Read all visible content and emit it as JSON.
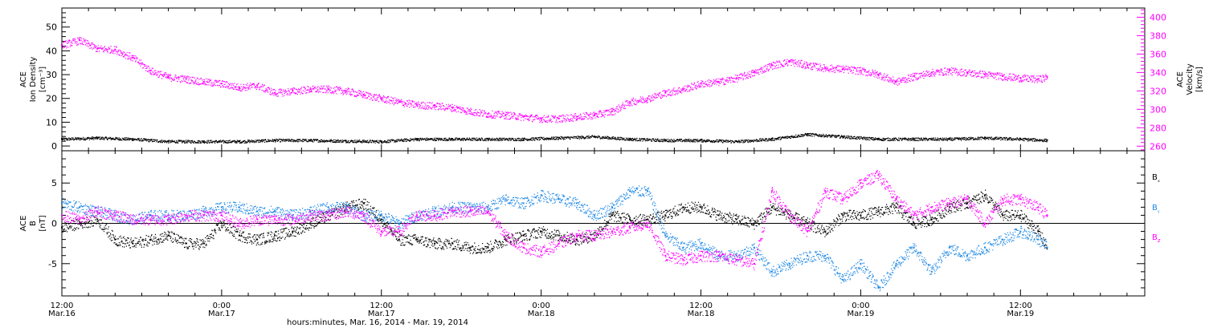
{
  "colors": {
    "black": "#000000",
    "magenta": "#ff00ff",
    "blue": "#1e88e5",
    "frame": "#000000"
  },
  "chart_data": [
    {
      "type": "scatter",
      "panel": "top",
      "ylabel_left": [
        "ACE",
        "Ion Density",
        "[cm⁻³]"
      ],
      "ylabel_right": [
        "ACE",
        "Velocity",
        "[km/s]"
      ],
      "left_axis": {
        "ylim": [
          -2,
          58
        ],
        "ticks": [
          0,
          10,
          20,
          30,
          40,
          50
        ]
      },
      "right_axis": {
        "ylim": [
          255,
          410
        ],
        "ticks": [
          260,
          280,
          300,
          320,
          340,
          360,
          380,
          400
        ]
      },
      "series": [
        {
          "axis": "left",
          "color": "black",
          "x": [
            0,
            4,
            8,
            12,
            16,
            20,
            24,
            28,
            32,
            36,
            40,
            44,
            48,
            52,
            56,
            60,
            64,
            68,
            72,
            76,
            80,
            84,
            88,
            92,
            96,
            100,
            104,
            108,
            111
          ],
          "y": [
            3,
            3.5,
            3,
            2,
            2,
            2,
            2.5,
            2.5,
            2.2,
            2,
            3,
            3,
            3,
            3,
            3.5,
            4,
            3,
            2.5,
            2.5,
            2,
            3,
            5,
            4,
            3,
            3,
            3,
            3.5,
            3,
            2.5
          ]
        },
        {
          "axis": "right",
          "color": "magenta",
          "x": [
            0,
            2,
            4,
            6,
            8,
            10,
            12,
            14,
            16,
            18,
            20,
            22,
            24,
            26,
            28,
            30,
            32,
            34,
            36,
            38,
            40,
            42,
            44,
            46,
            48,
            50,
            52,
            54,
            56,
            58,
            60,
            62,
            64,
            66,
            68,
            70,
            72,
            74,
            76,
            78,
            80,
            82,
            84,
            86,
            88,
            90,
            92,
            94,
            96,
            98,
            100,
            102,
            104,
            106,
            108,
            110,
            111
          ],
          "y": [
            370,
            375,
            366,
            365,
            356,
            342,
            335,
            333,
            330,
            328,
            324,
            326,
            318,
            320,
            322,
            322,
            320,
            316,
            312,
            308,
            305,
            304,
            302,
            298,
            295,
            294,
            292,
            290,
            290,
            292,
            294,
            298,
            308,
            312,
            318,
            322,
            328,
            330,
            334,
            340,
            348,
            352,
            348,
            345,
            344,
            342,
            338,
            330,
            336,
            340,
            342,
            340,
            338,
            336,
            334,
            333,
            335
          ]
        }
      ]
    },
    {
      "type": "scatter",
      "panel": "bottom",
      "ylabel": [
        "ACE",
        "B",
        "[nT]"
      ],
      "ylim": [
        -9,
        9
      ],
      "ticks": [
        -5,
        0,
        5
      ],
      "zero_line": true,
      "legend": [
        "Bₓ",
        "Bᵧ",
        "B_z"
      ],
      "legend_colors": [
        "black",
        "blue",
        "magenta"
      ],
      "series": [
        {
          "name": "Bₓ",
          "color": "black",
          "x": [
            0,
            2,
            4,
            6,
            8,
            10,
            12,
            14,
            16,
            18,
            20,
            22,
            24,
            26,
            28,
            30,
            32,
            34,
            36,
            38,
            40,
            42,
            44,
            46,
            48,
            50,
            52,
            54,
            56,
            58,
            60,
            62,
            64,
            66,
            68,
            70,
            72,
            74,
            76,
            78,
            80,
            82,
            84,
            86,
            88,
            90,
            92,
            94,
            96,
            98,
            100,
            102,
            104,
            106,
            108,
            110,
            111
          ],
          "y": [
            -0.5,
            0,
            0.5,
            -2,
            -2.5,
            -2,
            -1.5,
            -2.5,
            -2.5,
            0,
            -1.5,
            -2,
            -1.5,
            -1,
            0,
            1,
            2,
            2.5,
            0.5,
            -2,
            -2,
            -2.5,
            -2.5,
            -3,
            -3,
            -2,
            -1.5,
            -1,
            -1.5,
            -2,
            -1.5,
            1,
            0.5,
            0.5,
            1,
            2,
            2,
            1,
            0.5,
            0,
            2,
            1,
            0,
            -1,
            1,
            1,
            1.5,
            2,
            0,
            0.5,
            2,
            2.5,
            3.5,
            1,
            1,
            -1,
            -3
          ]
        },
        {
          "name": "Bᵧ",
          "color": "blue",
          "x": [
            0,
            2,
            4,
            6,
            8,
            10,
            12,
            14,
            16,
            18,
            20,
            22,
            24,
            26,
            28,
            30,
            32,
            34,
            36,
            38,
            40,
            42,
            44,
            46,
            48,
            50,
            52,
            54,
            56,
            58,
            60,
            62,
            64,
            66,
            68,
            70,
            72,
            74,
            76,
            78,
            80,
            82,
            84,
            86,
            88,
            90,
            92,
            94,
            96,
            98,
            100,
            102,
            104,
            106,
            108,
            110,
            111
          ],
          "y": [
            2.5,
            2,
            1.5,
            1,
            0.5,
            1,
            1,
            1,
            1.5,
            2,
            2,
            1.5,
            1.5,
            1,
            1.5,
            2,
            2,
            1,
            1,
            0,
            1,
            1.5,
            2,
            2,
            2,
            3,
            2.5,
            3.5,
            3,
            2.5,
            1,
            2,
            4,
            4,
            -1.5,
            -3,
            -2.5,
            -4,
            -4,
            -3,
            -6,
            -5,
            -4,
            -4,
            -7,
            -5,
            -8,
            -5,
            -3,
            -6,
            -3,
            -4,
            -3,
            -2,
            -1,
            -2,
            -3
          ]
        },
        {
          "name": "B_z",
          "color": "magenta",
          "x": [
            0,
            2,
            4,
            6,
            8,
            10,
            12,
            14,
            16,
            18,
            20,
            22,
            24,
            26,
            28,
            30,
            32,
            34,
            36,
            38,
            40,
            42,
            44,
            46,
            48,
            50,
            52,
            54,
            56,
            58,
            60,
            62,
            64,
            66,
            68,
            70,
            72,
            74,
            76,
            78,
            80,
            82,
            84,
            86,
            88,
            90,
            92,
            94,
            96,
            98,
            100,
            102,
            104,
            106,
            108,
            110,
            111
          ],
          "y": [
            1,
            0.5,
            1.5,
            1,
            0.5,
            0.5,
            0.5,
            1,
            1,
            1,
            0,
            0.5,
            0.5,
            0.5,
            1,
            1,
            1.5,
            1,
            -1,
            -1,
            1,
            1,
            1.5,
            1.5,
            1.5,
            -1.5,
            -3,
            -3.5,
            -2.5,
            -1.5,
            -1.5,
            -1,
            -0.5,
            0,
            -4,
            -4.5,
            -4,
            -4,
            -4.5,
            -5,
            4,
            1,
            -1,
            4,
            3,
            5,
            6,
            3,
            1,
            2,
            2.5,
            3,
            0,
            3,
            3,
            2,
            1
          ]
        }
      ]
    }
  ],
  "x_axis": {
    "xlim": [
      0,
      122
    ],
    "major_ticks": [
      0,
      18,
      36,
      54,
      72,
      90,
      108
    ],
    "tick_labels": [
      {
        "x": 0,
        "time": "12:00",
        "date": "Mar.16"
      },
      {
        "x": 18,
        "time": "0:00",
        "date": "Mar.17"
      },
      {
        "x": 36,
        "time": "12:00",
        "date": "Mar.17"
      },
      {
        "x": 54,
        "time": "0:00",
        "date": "Mar.18"
      },
      {
        "x": 72,
        "time": "12:00",
        "date": "Mar.18"
      },
      {
        "x": 90,
        "time": "0:00",
        "date": "Mar.19"
      },
      {
        "x": 108,
        "time": "12:00",
        "date": "Mar.19"
      }
    ],
    "xlabel": "hours:minutes, Mar. 16, 2014 - Mar. 19, 2014"
  }
}
